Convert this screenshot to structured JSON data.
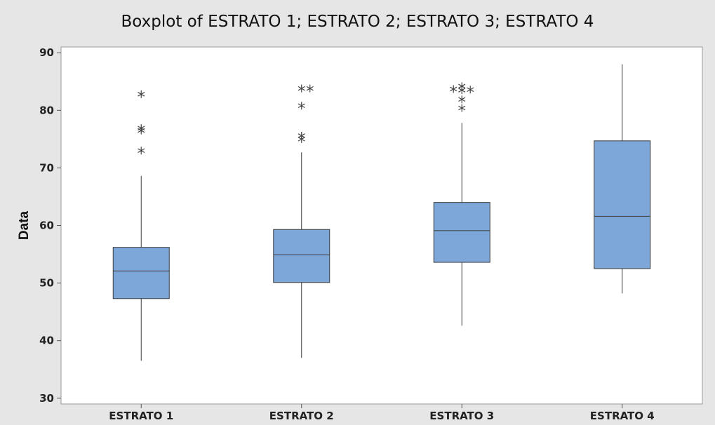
{
  "chart_data": {
    "type": "boxplot",
    "title": "Boxplot of ESTRATO 1; ESTRATO 2; ESTRATO 3; ESTRATO 4",
    "xlabel": "",
    "ylabel": "Data",
    "ylim": [
      29,
      91
    ],
    "yticks": [
      "30",
      "40",
      "50",
      "60",
      "70",
      "80",
      "90"
    ],
    "categories": [
      "ESTRATO 1",
      "ESTRATO 2",
      "ESTRATO 3",
      "ESTRATO 4"
    ],
    "boxes": [
      {
        "name": "ESTRATO 1",
        "whisker_low": 36.5,
        "q1": 47.3,
        "median": 52.1,
        "q3": 56.2,
        "whisker_high": 68.6,
        "outliers": [
          73.0,
          76.5,
          76.9,
          82.8
        ]
      },
      {
        "name": "ESTRATO 2",
        "whisker_low": 37.0,
        "q1": 50.1,
        "median": 54.9,
        "q3": 59.3,
        "whisker_high": 72.7,
        "outliers": [
          75.0,
          75.6,
          80.8,
          83.8,
          83.8
        ]
      },
      {
        "name": "ESTRATO 3",
        "whisker_low": 42.6,
        "q1": 53.6,
        "median": 59.1,
        "q3": 64.0,
        "whisker_high": 77.8,
        "outliers": [
          80.4,
          81.9,
          83.5,
          83.6,
          84.2,
          83.7
        ]
      },
      {
        "name": "ESTRATO 4",
        "whisker_low": 48.2,
        "q1": 52.5,
        "median": 61.6,
        "q3": 74.7,
        "whisker_high": 88.0,
        "outliers": []
      }
    ],
    "grid": false,
    "box_color": "#7da7d9",
    "outlier_marker": "asterisk"
  }
}
